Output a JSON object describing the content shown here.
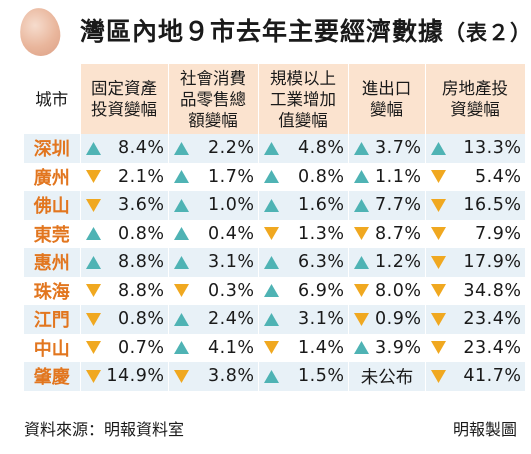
{
  "title": {
    "main": "灣區內地９市去年主要經濟數據",
    "sub": "（表２）"
  },
  "colors": {
    "up": "#4fb3b4",
    "down": "#f0a820",
    "city": "#e2761f",
    "header_bg": "#fbe3cf",
    "row_shade": "#e8f1f7"
  },
  "table": {
    "headers": [
      {
        "lines": [
          "城市"
        ]
      },
      {
        "lines": [
          "固定資產",
          "投資變幅"
        ]
      },
      {
        "lines": [
          "社會消費",
          "品零售總",
          "額變幅"
        ]
      },
      {
        "lines": [
          "規模以上",
          "工業增加",
          "值變幅"
        ]
      },
      {
        "lines": [
          "進出口",
          "變幅"
        ]
      },
      {
        "lines": [
          "房地產投",
          "資變幅"
        ]
      }
    ],
    "rows": [
      {
        "city": "深圳",
        "cells": [
          {
            "dir": "up",
            "value": "8.4%"
          },
          {
            "dir": "up",
            "value": "2.2%"
          },
          {
            "dir": "up",
            "value": "4.8%"
          },
          {
            "dir": "up",
            "value": "3.7%"
          },
          {
            "dir": "up",
            "value": "13.3%"
          }
        ]
      },
      {
        "city": "廣州",
        "cells": [
          {
            "dir": "down",
            "value": "2.1%"
          },
          {
            "dir": "up",
            "value": "1.7%"
          },
          {
            "dir": "up",
            "value": "0.8%"
          },
          {
            "dir": "up",
            "value": "1.1%"
          },
          {
            "dir": "down",
            "value": "5.4%"
          }
        ]
      },
      {
        "city": "佛山",
        "cells": [
          {
            "dir": "down",
            "value": "3.6%"
          },
          {
            "dir": "up",
            "value": "1.0%"
          },
          {
            "dir": "up",
            "value": "1.6%"
          },
          {
            "dir": "up",
            "value": "7.7%"
          },
          {
            "dir": "down",
            "value": "16.5%"
          }
        ]
      },
      {
        "city": "東莞",
        "cells": [
          {
            "dir": "up",
            "value": "0.8%"
          },
          {
            "dir": "up",
            "value": "0.4%"
          },
          {
            "dir": "down",
            "value": "1.3%"
          },
          {
            "dir": "down",
            "value": "8.7%"
          },
          {
            "dir": "down",
            "value": "7.9%"
          }
        ]
      },
      {
        "city": "惠州",
        "cells": [
          {
            "dir": "up",
            "value": "8.8%"
          },
          {
            "dir": "up",
            "value": "3.1%"
          },
          {
            "dir": "up",
            "value": "6.3%"
          },
          {
            "dir": "up",
            "value": "1.2%"
          },
          {
            "dir": "down",
            "value": "17.9%"
          }
        ]
      },
      {
        "city": "珠海",
        "cells": [
          {
            "dir": "down",
            "value": "8.8%"
          },
          {
            "dir": "down",
            "value": "0.3%"
          },
          {
            "dir": "up",
            "value": "6.9%"
          },
          {
            "dir": "down",
            "value": "8.0%"
          },
          {
            "dir": "down",
            "value": "34.8%"
          }
        ]
      },
      {
        "city": "江門",
        "cells": [
          {
            "dir": "down",
            "value": "0.8%"
          },
          {
            "dir": "up",
            "value": "2.4%"
          },
          {
            "dir": "up",
            "value": "3.1%"
          },
          {
            "dir": "down",
            "value": "0.9%"
          },
          {
            "dir": "down",
            "value": "23.4%"
          }
        ]
      },
      {
        "city": "中山",
        "cells": [
          {
            "dir": "down",
            "value": "0.7%"
          },
          {
            "dir": "up",
            "value": "4.1%"
          },
          {
            "dir": "down",
            "value": "1.4%"
          },
          {
            "dir": "up",
            "value": "3.9%"
          },
          {
            "dir": "down",
            "value": "23.4%"
          }
        ]
      },
      {
        "city": "肇慶",
        "cells": [
          {
            "dir": "down",
            "value": "14.9%"
          },
          {
            "dir": "down",
            "value": "3.8%"
          },
          {
            "dir": "up",
            "value": "1.5%"
          },
          {
            "dir": "none",
            "value": "未公布"
          },
          {
            "dir": "down",
            "value": "41.7%"
          }
        ]
      }
    ]
  },
  "footer": {
    "source": "資料來源：明報資料室",
    "credit": "明報製圖"
  }
}
